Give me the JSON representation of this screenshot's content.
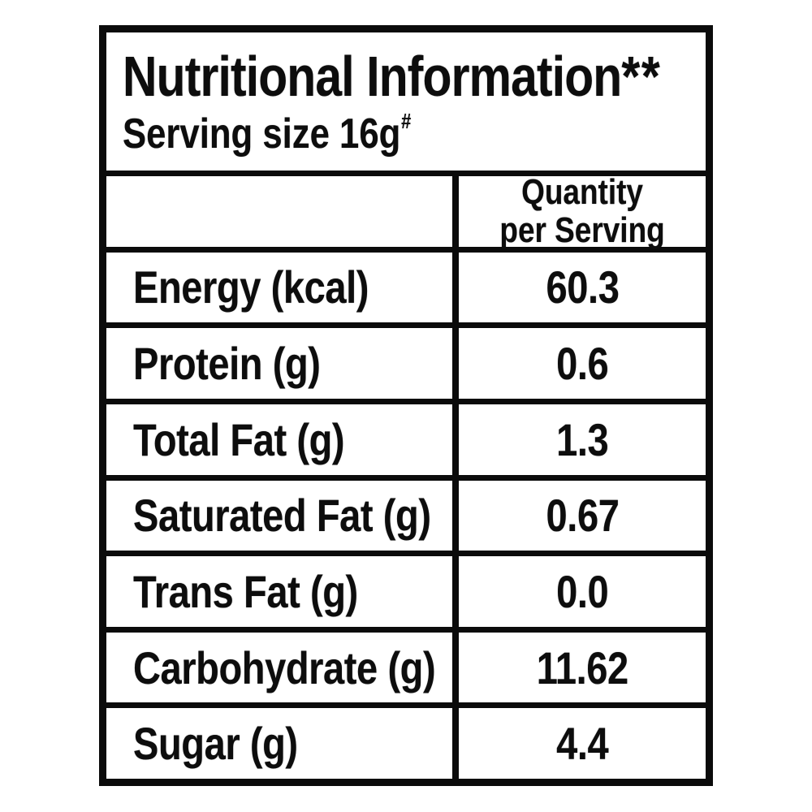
{
  "label": {
    "title": "Nutritional Information",
    "title_footnote_marks": "**",
    "serving": {
      "text": "Serving size 16g",
      "superscript": "#"
    },
    "value_column_header": {
      "line1": "Quantity",
      "line2": "per Serving"
    },
    "rows": [
      {
        "name": "Energy (kcal)",
        "value": "60.3"
      },
      {
        "name": "Protein (g)",
        "value": "0.6"
      },
      {
        "name": "Total Fat (g)",
        "value": "1.3"
      },
      {
        "name": "Saturated Fat (g)",
        "value": "0.67"
      },
      {
        "name": "Trans Fat (g)",
        "value": "0.0"
      },
      {
        "name": "Carbohydrate (g)",
        "value": "11.62"
      },
      {
        "name": "Sugar (g)",
        "value": "4.4"
      }
    ],
    "colors": {
      "border": "#0b0b0b",
      "background": "#ffffff",
      "text": "#0d0d0d"
    }
  }
}
